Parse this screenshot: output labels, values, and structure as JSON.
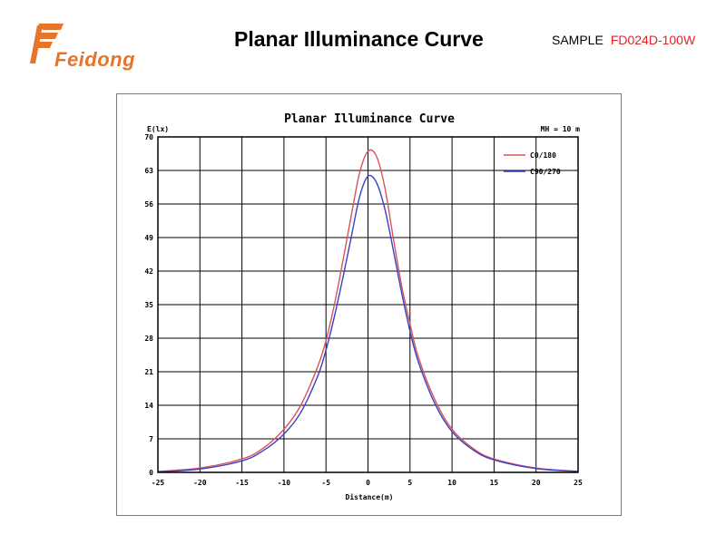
{
  "header": {
    "logo_text": "Feidong",
    "title": "Planar Illuminance Curve",
    "sample_label": "SAMPLE",
    "sample_code": "FD024D-100W",
    "colors": {
      "logo": "#e8742a",
      "sample_code": "#e0242b"
    }
  },
  "chart_data": {
    "type": "line",
    "title": "Planar Illuminance Curve",
    "ylabel": "E(lx)",
    "xlabel": "Distance(m)",
    "annotation": "MH = 10 m",
    "xlim": [
      -25,
      25
    ],
    "ylim": [
      0,
      70
    ],
    "x_ticks": [
      -25,
      -20,
      -15,
      -10,
      -5,
      0,
      5,
      10,
      15,
      20,
      25
    ],
    "y_ticks": [
      0,
      7,
      14,
      21,
      28,
      35,
      42,
      49,
      56,
      63,
      70
    ],
    "x_tick_labels": [
      "-25",
      "-20",
      "-15",
      "-10",
      "-5",
      "0",
      "5",
      "10",
      "15",
      "20",
      "25"
    ],
    "y_tick_labels": [
      "0",
      "7",
      "14",
      "21",
      "28",
      "35",
      "42",
      "49",
      "56",
      "63",
      "70"
    ],
    "grid": true,
    "legend_position": "top-right",
    "x": [
      -25,
      -20,
      -15,
      -12.5,
      -10,
      -8,
      -6,
      -5,
      -4,
      -3,
      -2,
      -1,
      0,
      1,
      2,
      3,
      4,
      5,
      6,
      8,
      10,
      12.5,
      15,
      20,
      25
    ],
    "series": [
      {
        "name": "C0/180",
        "color": "#d9535a",
        "values": [
          0.2,
          0.9,
          2.8,
          5.0,
          9.0,
          14.0,
          22.0,
          27.5,
          35.0,
          44.0,
          53.5,
          62.5,
          67.0,
          66.0,
          59.5,
          49.0,
          39.0,
          31.0,
          24.0,
          15.0,
          9.0,
          5.0,
          2.8,
          0.9,
          0.2
        ]
      },
      {
        "name": "C90/270",
        "color": "#3b3fc6",
        "values": [
          0.1,
          0.7,
          2.4,
          4.5,
          8.0,
          12.5,
          20.0,
          25.5,
          32.5,
          40.5,
          49.0,
          57.5,
          61.8,
          60.5,
          55.0,
          46.5,
          37.5,
          29.5,
          23.0,
          14.2,
          8.5,
          4.7,
          2.6,
          0.8,
          0.2
        ]
      }
    ]
  }
}
